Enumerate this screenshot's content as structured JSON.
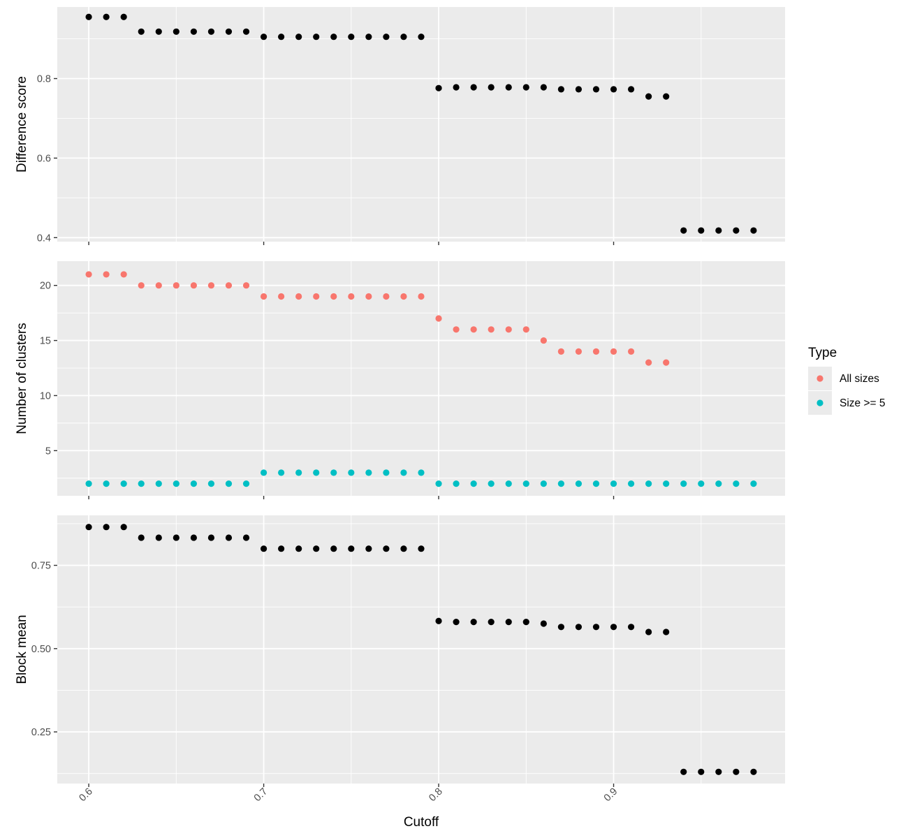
{
  "chart_data": {
    "type": "scatter",
    "x": [
      0.6,
      0.61,
      0.62,
      0.63,
      0.64,
      0.65,
      0.66,
      0.67,
      0.68,
      0.69,
      0.7,
      0.71,
      0.72,
      0.73,
      0.74,
      0.75,
      0.76,
      0.77,
      0.78,
      0.79,
      0.8,
      0.81,
      0.82,
      0.83,
      0.84,
      0.85,
      0.86,
      0.87,
      0.88,
      0.89,
      0.9,
      0.91,
      0.92,
      0.93,
      0.94,
      0.95,
      0.96,
      0.97,
      0.98
    ],
    "xlabel": "Cutoff",
    "x_ticks": [
      0.6,
      0.7,
      0.8,
      0.9
    ],
    "x_tick_labels": [
      "0.6",
      "0.7",
      "0.8",
      "0.9"
    ],
    "xlim": [
      0.582,
      0.998
    ],
    "grid": true,
    "legend": {
      "title": "Type",
      "placement": "right",
      "entries": [
        {
          "label": "All sizes",
          "color": "#F8766D"
        },
        {
          "label": "Size >= 5",
          "color": "#00BFC4"
        }
      ]
    },
    "panels": [
      {
        "ylabel": "Difference score",
        "ylim": [
          0.39,
          0.98
        ],
        "y_ticks": [
          0.4,
          0.6,
          0.8
        ],
        "y_tick_labels": [
          "0.4",
          "0.6",
          "0.8"
        ],
        "series": [
          {
            "color": "#000000",
            "values": [
              0.955,
              0.955,
              0.955,
              0.918,
              0.918,
              0.918,
              0.918,
              0.918,
              0.918,
              0.918,
              0.905,
              0.905,
              0.905,
              0.905,
              0.905,
              0.905,
              0.905,
              0.905,
              0.905,
              0.905,
              0.776,
              0.778,
              0.778,
              0.778,
              0.778,
              0.778,
              0.778,
              0.773,
              0.773,
              0.773,
              0.773,
              0.773,
              0.755,
              0.755,
              0.418,
              0.418,
              0.418,
              0.418,
              0.418
            ]
          }
        ]
      },
      {
        "ylabel": "Number of clusters",
        "ylim": [
          0.9,
          22.2
        ],
        "y_ticks": [
          5,
          10,
          15,
          20
        ],
        "y_tick_labels": [
          "5",
          "10",
          "15",
          "20"
        ],
        "series": [
          {
            "name": "All sizes",
            "color": "#F8766D",
            "values": [
              21,
              21,
              21,
              20,
              20,
              20,
              20,
              20,
              20,
              20,
              19,
              19,
              19,
              19,
              19,
              19,
              19,
              19,
              19,
              19,
              17,
              16,
              16,
              16,
              16,
              16,
              15,
              14,
              14,
              14,
              14,
              14,
              13,
              13,
              null,
              null,
              null,
              null,
              null
            ]
          },
          {
            "name": "Size >= 5",
            "color": "#00BFC4",
            "values": [
              2,
              2,
              2,
              2,
              2,
              2,
              2,
              2,
              2,
              2,
              3,
              3,
              3,
              3,
              3,
              3,
              3,
              3,
              3,
              3,
              2,
              2,
              2,
              2,
              2,
              2,
              2,
              2,
              2,
              2,
              2,
              2,
              2,
              2,
              2,
              2,
              2,
              2,
              2
            ]
          }
        ]
      },
      {
        "ylabel": "Block mean",
        "ylim": [
          0.095,
          0.9
        ],
        "y_ticks": [
          0.25,
          0.5,
          0.75
        ],
        "y_tick_labels": [
          "0.25",
          "0.50",
          "0.75"
        ],
        "series": [
          {
            "color": "#000000",
            "values": [
              0.865,
              0.865,
              0.865,
              0.833,
              0.833,
              0.833,
              0.833,
              0.833,
              0.833,
              0.833,
              0.8,
              0.8,
              0.8,
              0.8,
              0.8,
              0.8,
              0.8,
              0.8,
              0.8,
              0.8,
              0.583,
              0.58,
              0.58,
              0.58,
              0.58,
              0.58,
              0.575,
              0.565,
              0.565,
              0.565,
              0.565,
              0.565,
              0.55,
              0.55,
              0.13,
              0.13,
              0.13,
              0.13,
              0.13
            ]
          }
        ]
      }
    ]
  }
}
